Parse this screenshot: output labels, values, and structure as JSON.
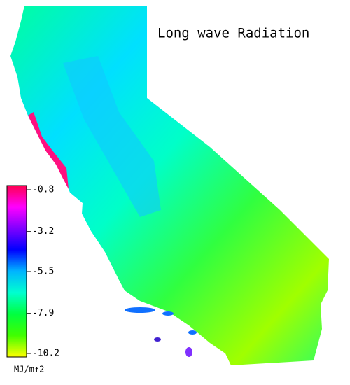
{
  "title": "Long wave Radiation",
  "colorbar": {
    "lim": [
      -10.2,
      -0.8
    ],
    "ticks": [
      -0.8,
      -3.2,
      -5.5,
      -7.9,
      -10.2
    ],
    "unit": "MJ/m↑2",
    "colors": [
      "#ff0050",
      "#ff00ff",
      "#8000ff",
      "#0000ff",
      "#00b4ff",
      "#00ffd0",
      "#00ff40",
      "#40ff00",
      "#ffff00"
    ]
  }
}
